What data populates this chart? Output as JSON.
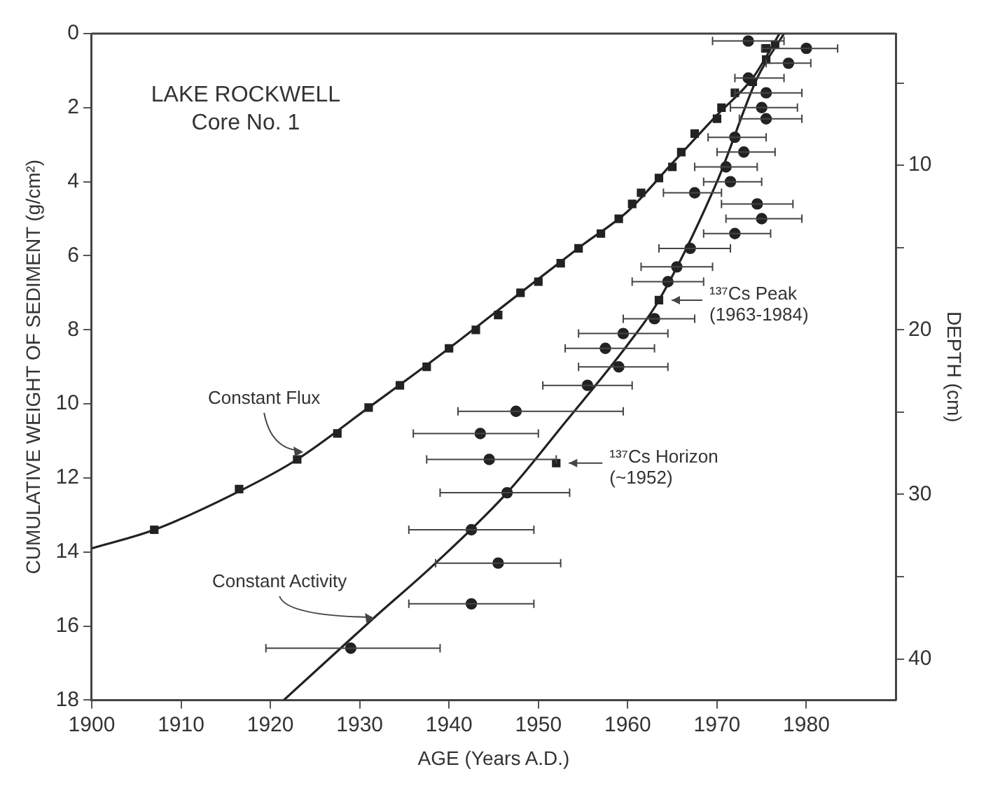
{
  "chart_data": {
    "type": "scatter",
    "title": "LAKE ROCKWELL\nCore No. 1",
    "xlabel": "AGE (Years A.D.)",
    "ylabel": "CUMULATIVE WEIGHT OF SEDIMENT (g/cm²)",
    "y2label": "DEPTH (cm)",
    "xlim": [
      1900,
      1990
    ],
    "xticks": [
      1900,
      1910,
      1920,
      1930,
      1940,
      1950,
      1960,
      1970,
      1980
    ],
    "ylim": [
      18,
      0
    ],
    "yticks": [
      0,
      2,
      4,
      6,
      8,
      10,
      12,
      14,
      16,
      18
    ],
    "y2lim": [
      42.5,
      2
    ],
    "y2ticks": [
      {
        "value": 5,
        "label": null
      },
      10,
      {
        "value": 15,
        "label": null
      },
      20,
      {
        "value": 25,
        "label": null
      },
      30,
      {
        "value": 35,
        "label": null
      },
      40
    ],
    "grid": false,
    "legend": false,
    "series": [
      {
        "type": "scatter",
        "marker": "square",
        "color": "#222222",
        "x": [
          1907,
          1916.5,
          1923,
          1927.5,
          1931,
          1934.5,
          1937.5,
          1940,
          1943,
          1945.5,
          1948,
          1950,
          1952.5,
          1954.5,
          1957,
          1959,
          1960.5,
          1961.5,
          1963.5,
          1965,
          1966,
          1967.5,
          1970,
          1970.5,
          1972,
          1974,
          1975.5,
          1975.5,
          1976.5
        ],
        "values": [
          13.4,
          12.3,
          11.5,
          10.8,
          10.1,
          9.5,
          9.0,
          8.5,
          8.0,
          7.6,
          7.0,
          6.7,
          6.2,
          5.8,
          5.4,
          5.0,
          4.6,
          4.3,
          3.9,
          3.6,
          3.2,
          2.7,
          2.3,
          2.0,
          1.6,
          1.3,
          0.7,
          0.4,
          0.3
        ]
      },
      {
        "type": "line",
        "marker": "none",
        "line_style": "solid",
        "color": "#222222",
        "x": [
          1900,
          1907,
          1917,
          1923,
          1931,
          1940,
          1948,
          1955,
          1960,
          1965,
          1970,
          1974,
          1977
        ],
        "values": [
          13.9,
          13.4,
          12.3,
          11.5,
          10.1,
          8.5,
          7.0,
          5.7,
          4.8,
          3.5,
          2.2,
          1.2,
          0
        ]
      },
      {
        "type": "scatter",
        "marker": "circle",
        "color": "#222222",
        "x": [
          1973.5,
          1980,
          1978,
          1973.5,
          1975.5,
          1975,
          1975.5,
          1972,
          1973,
          1971,
          1971.5,
          1967.5,
          1974.5,
          1975,
          1972,
          1967,
          1965.5,
          1964.5,
          1963,
          1959.5,
          1957.5,
          1959,
          1955.5,
          1947.5,
          1943.5,
          1944.5,
          1946.5,
          1942.5,
          1945.5,
          1942.5,
          1929
        ],
        "values": [
          0.2,
          0.4,
          0.8,
          1.2,
          1.6,
          2.0,
          2.3,
          2.8,
          3.2,
          3.6,
          4.0,
          4.3,
          4.6,
          5.0,
          5.4,
          5.8,
          6.3,
          6.7,
          7.7,
          8.1,
          8.5,
          9.0,
          9.5,
          10.2,
          10.8,
          11.5,
          12.4,
          13.4,
          14.3,
          15.4,
          16.6
        ],
        "xerrors": [
          [
            1969.5,
            1977.5
          ],
          [
            1975,
            1983.5
          ],
          [
            1975.5,
            1980.5
          ],
          [
            1972,
            1977.5
          ],
          [
            1972,
            1979.5
          ],
          [
            1971.5,
            1979
          ],
          [
            1972.5,
            1979.5
          ],
          [
            1969,
            1975.5
          ],
          [
            1970,
            1976.5
          ],
          [
            1967.5,
            1974.5
          ],
          [
            1968.5,
            1975
          ],
          [
            1964,
            1970.5
          ],
          [
            1970.5,
            1978.5
          ],
          [
            1971,
            1979.5
          ],
          [
            1968.5,
            1976
          ],
          [
            1963.5,
            1971.5
          ],
          [
            1961.5,
            1969.5
          ],
          [
            1960.5,
            1968.5
          ],
          [
            1959.5,
            1967.5
          ],
          [
            1954.5,
            1964.5
          ],
          [
            1953,
            1963
          ],
          [
            1954.5,
            1964.5
          ],
          [
            1950.5,
            1960.5
          ],
          [
            1941,
            1959.5
          ],
          [
            1936,
            1950
          ],
          [
            1937.5,
            1952
          ],
          [
            1939,
            1953.5
          ],
          [
            1935.5,
            1949.5
          ],
          [
            1938.5,
            1952.5
          ],
          [
            1935.5,
            1949.5
          ],
          [
            1919.5,
            1939
          ]
        ]
      },
      {
        "type": "line",
        "marker": "none",
        "line_style": "solid",
        "color": "#222222",
        "x": [
          1921.5,
          1931.5,
          1938.5,
          1946.5,
          1953,
          1960,
          1963.5,
          1970,
          1974.5,
          1977.5
        ],
        "values": [
          18,
          15.8,
          14.3,
          12.4,
          10.5,
          8.4,
          7.2,
          4.0,
          1.2,
          0
        ]
      },
      {
        "type": "scatter",
        "marker": "square",
        "color": "#222222",
        "x": [
          1963.5,
          1952
        ],
        "values": [
          7.2,
          11.6
        ]
      }
    ],
    "annotations": [
      {
        "text": "¹³⁷Cs Peak\n(1963-1984)",
        "x": 1963.5,
        "y": 7.2
      },
      {
        "text": "¹³⁷Cs Horizon\n(~1952)",
        "x": 1952,
        "y": 11.6
      },
      {
        "text": "Constant Flux",
        "x": 1924,
        "y": 11.3
      },
      {
        "text": "Constant Activity",
        "x": 1932,
        "y": 15.8
      }
    ]
  }
}
